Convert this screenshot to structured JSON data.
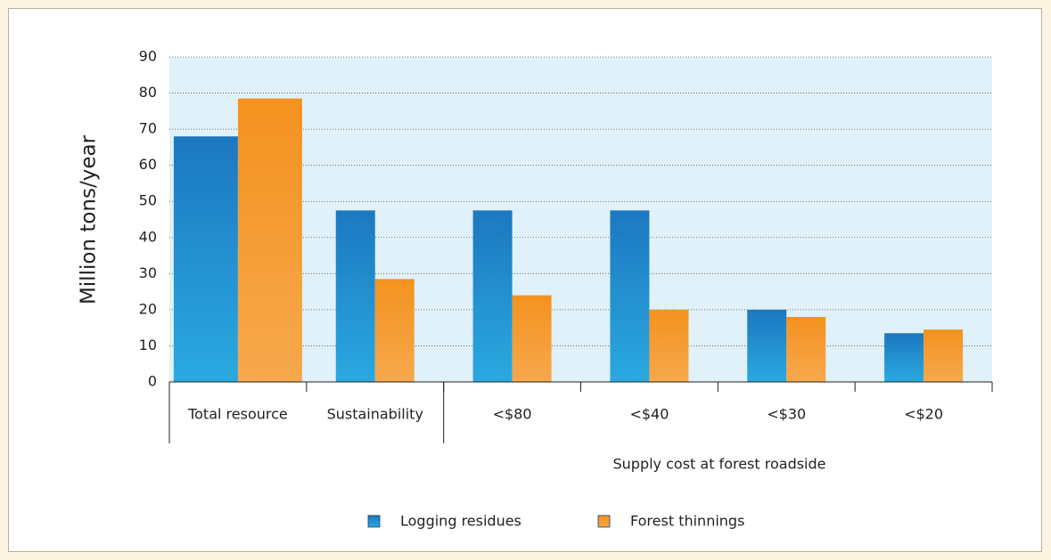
{
  "chart_data": {
    "type": "bar",
    "y_label": "Million tons/year",
    "x_group_label": "Supply cost at forest roadside",
    "categories": [
      "Total resource",
      "Sustainability",
      "<$80",
      "<$40",
      "<$30",
      "<$20"
    ],
    "series": [
      {
        "name": "Logging residues",
        "color": "#1c78c0",
        "values": [
          68,
          47.5,
          47.5,
          47.5,
          20,
          13.5
        ]
      },
      {
        "name": "Forest thinnings",
        "color": "#f4921f",
        "values": [
          78.5,
          28.5,
          24,
          20,
          18,
          14.5
        ]
      }
    ],
    "ylim": [
      0,
      90
    ],
    "yticks": [
      0,
      10,
      20,
      30,
      40,
      50,
      60,
      70,
      80,
      90
    ],
    "grid": true
  }
}
